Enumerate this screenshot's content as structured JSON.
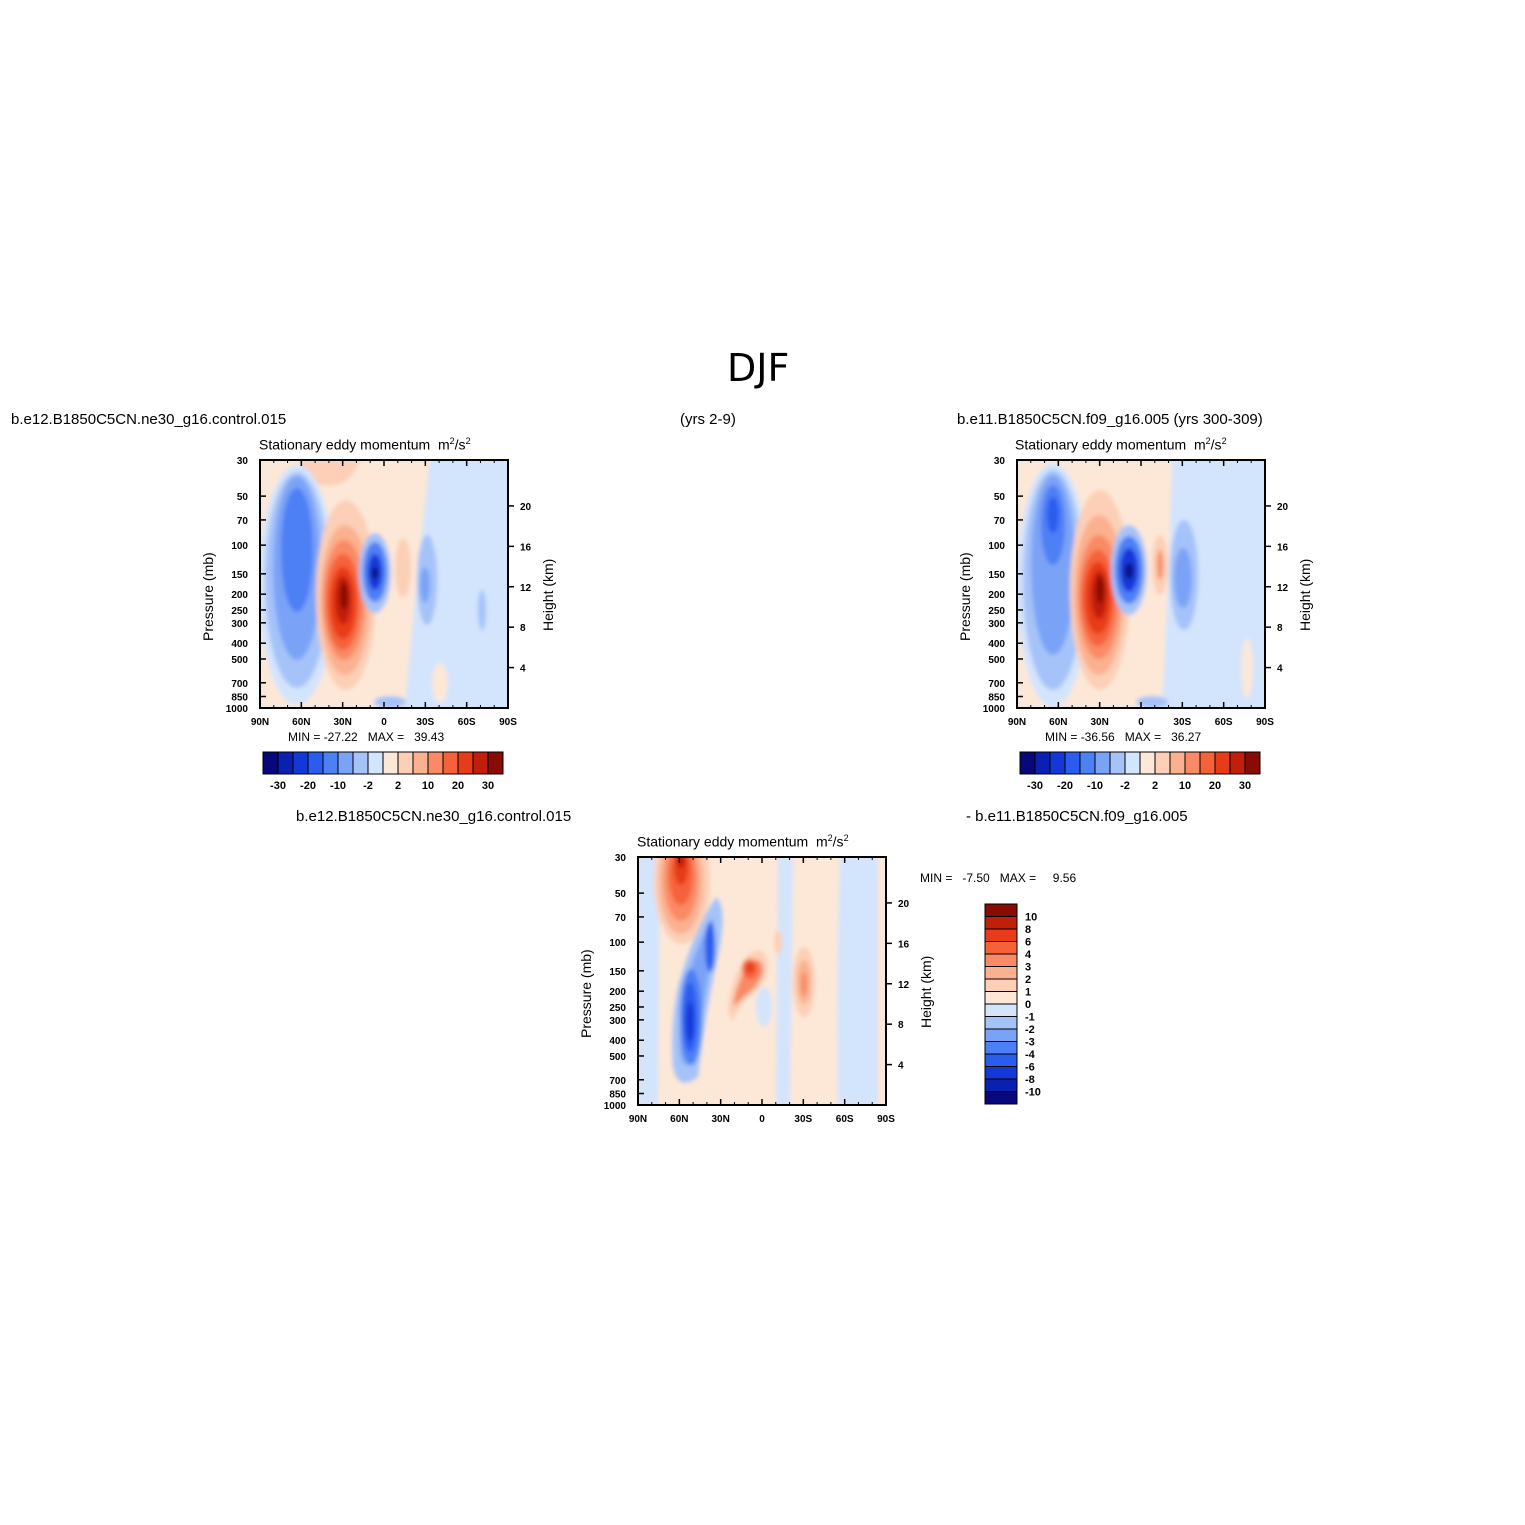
{
  "figure_title": "DJF",
  "case_left": "b.e12.B1850C5CN.ne30_g16.control.015",
  "years_left": "(yrs 2-9)",
  "case_right": "b.e11.B1850C5CN.f09_g16.005 (yrs 300-309)",
  "diff_label_a": "b.e12.B1850C5CN.ne30_g16.control.015",
  "diff_label_b": "-  b.e11.B1850C5CN.f09_g16.005",
  "colors": {
    "blues": [
      "#08087a",
      "#0a20b0",
      "#1438d8",
      "#2a5cf0",
      "#4d7ff5",
      "#7aa3f7",
      "#a5c3f9",
      "#d3e4fd"
    ],
    "reds": [
      "#fde8d8",
      "#fccfb6",
      "#fbb08f",
      "#f98a65",
      "#f5623a",
      "#e83b18",
      "#c21f0a",
      "#8a0b05"
    ]
  },
  "chart_data": [
    {
      "type": "contour",
      "title": "Stationary  eddy  momentum",
      "units": "m",
      "units_exp": "2",
      "units_tail": "/s",
      "units_exp2": "2",
      "ylabel": "Pressure  (mb)",
      "ylabel_right": "Height  (km)",
      "x_ticks": [
        "90N",
        "60N",
        "30N",
        "0",
        "30S",
        "60S",
        "90S"
      ],
      "y_ticks": [
        "30",
        "50",
        "70",
        "100",
        "150",
        "200",
        "250",
        "300",
        "400",
        "500",
        "700",
        "850",
        "1000"
      ],
      "y_ticks_right": [
        "20",
        "16",
        "12",
        "8",
        "4"
      ],
      "min_label": "MIN  =",
      "min": "-27.22",
      "max_label": "MAX  =",
      "max": "39.43",
      "levels": [
        -30,
        -25,
        -20,
        -15,
        -10,
        -5,
        -2,
        0,
        2,
        5,
        10,
        15,
        20,
        25,
        30
      ],
      "colorbar_labels": [
        "-30",
        "-20",
        "-10",
        "-2",
        "2",
        "10",
        "20",
        "30"
      ]
    },
    {
      "type": "contour",
      "title": "Stationary  eddy  momentum",
      "units": "m",
      "units_exp": "2",
      "units_tail": "/s",
      "units_exp2": "2",
      "ylabel": "Pressure  (mb)",
      "ylabel_right": "Height  (km)",
      "x_ticks": [
        "90N",
        "60N",
        "30N",
        "0",
        "30S",
        "60S",
        "90S"
      ],
      "y_ticks": [
        "30",
        "50",
        "70",
        "100",
        "150",
        "200",
        "250",
        "300",
        "400",
        "500",
        "700",
        "850",
        "1000"
      ],
      "y_ticks_right": [
        "20",
        "16",
        "12",
        "8",
        "4"
      ],
      "min_label": "MIN  =",
      "min": "-36.56",
      "max_label": "MAX  =",
      "max": "36.27",
      "levels": [
        -30,
        -25,
        -20,
        -15,
        -10,
        -5,
        -2,
        0,
        2,
        5,
        10,
        15,
        20,
        25,
        30
      ],
      "colorbar_labels": [
        "-30",
        "-20",
        "-10",
        "-2",
        "2",
        "10",
        "20",
        "30"
      ]
    },
    {
      "type": "contour",
      "title": "Stationary  eddy  momentum",
      "units": "m",
      "units_exp": "2",
      "units_tail": "/s",
      "units_exp2": "2",
      "ylabel": "Pressure  (mb)",
      "ylabel_right": "Height  (km)",
      "x_ticks": [
        "90N",
        "60N",
        "30N",
        "0",
        "30S",
        "60S",
        "90S"
      ],
      "y_ticks": [
        "30",
        "50",
        "70",
        "100",
        "150",
        "200",
        "250",
        "300",
        "400",
        "500",
        "700",
        "850",
        "1000"
      ],
      "y_ticks_right": [
        "20",
        "16",
        "12",
        "8",
        "4"
      ],
      "min_label": "MIN  =",
      "min": "-7.50",
      "max_label": "MAX  =",
      "max": "9.56",
      "levels": [
        -10,
        -8,
        -6,
        -4,
        -3,
        -2,
        -1,
        0,
        1,
        2,
        3,
        4,
        6,
        8,
        10
      ],
      "colorbar_labels": [
        "10",
        "8",
        "6",
        "4",
        "3",
        "2",
        "1",
        "0",
        "-1",
        "-2",
        "-3",
        "-4",
        "-6",
        "-8",
        "-10"
      ]
    }
  ]
}
